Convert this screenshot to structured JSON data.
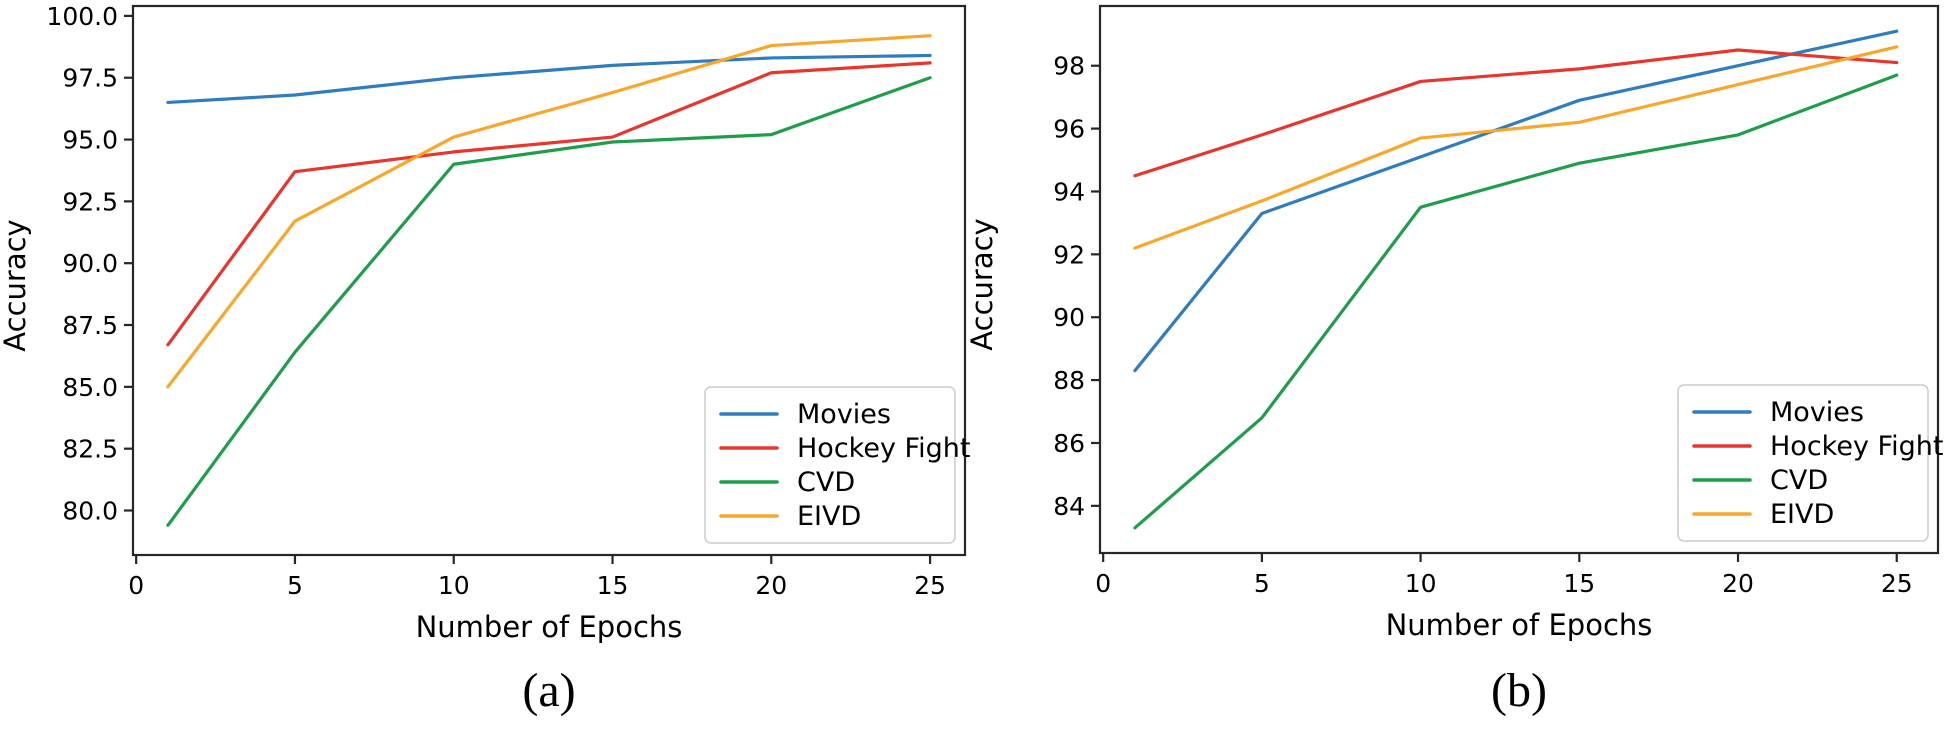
{
  "figure": {
    "ylabel": "Accuracy",
    "xlabel": "Number of Epochs"
  },
  "palette": {
    "movies": "#2f7cbe",
    "hockey_fight": "#e8352d",
    "cvd": "#1e9e4a",
    "eivd": "#f9a72b",
    "axis": "#262626",
    "legend_border": "#cccccc",
    "background": "#ffffff"
  },
  "chart_data": [
    {
      "id": "a",
      "type": "line",
      "caption": "(a)",
      "title": "",
      "xlabel": "Number of Epochs",
      "ylabel": "Accuracy",
      "x": [
        1,
        5,
        10,
        15,
        20,
        25
      ],
      "series": [
        {
          "name": "Movies",
          "color": "#2f7cbe",
          "values": [
            96.5,
            96.8,
            97.5,
            98.0,
            98.3,
            98.4
          ]
        },
        {
          "name": "Hockey Fight",
          "color": "#e8352d",
          "values": [
            86.7,
            93.7,
            94.5,
            95.1,
            97.7,
            98.1
          ]
        },
        {
          "name": "CVD",
          "color": "#1e9e4a",
          "values": [
            79.4,
            86.4,
            94.0,
            94.9,
            95.2,
            97.5
          ]
        },
        {
          "name": "EIVD",
          "color": "#f9a72b",
          "values": [
            85.0,
            91.7,
            95.1,
            96.9,
            98.8,
            99.2
          ]
        }
      ],
      "xlim": [
        -0.1,
        26.1
      ],
      "ylim": [
        78.2,
        100.4
      ],
      "xticks": [
        0,
        5,
        10,
        15,
        20,
        25
      ],
      "xtick_labels": [
        "0",
        "5",
        "10",
        "15",
        "20",
        "25"
      ],
      "yticks": [
        80.0,
        82.5,
        85.0,
        87.5,
        90.0,
        92.5,
        95.0,
        97.5,
        100.0
      ],
      "ytick_labels": [
        "80.0",
        "82.5",
        "85.0",
        "87.5",
        "90.0",
        "92.5",
        "95.0",
        "97.5",
        "100.0"
      ],
      "legend_position": "lower right",
      "legend_entries": [
        "Movies",
        "Hockey Fight",
        "CVD",
        "EIVD"
      ],
      "grid": false
    },
    {
      "id": "b",
      "type": "line",
      "caption": "(b)",
      "title": "",
      "xlabel": "Number of Epochs",
      "ylabel": "Accuracy",
      "x": [
        1,
        5,
        10,
        15,
        20,
        25
      ],
      "series": [
        {
          "name": "Movies",
          "color": "#2f7cbe",
          "values": [
            88.3,
            93.3,
            95.1,
            96.9,
            98.0,
            99.1
          ]
        },
        {
          "name": "Hockey Fight",
          "color": "#e8352d",
          "values": [
            94.5,
            95.8,
            97.5,
            97.9,
            98.5,
            98.1
          ]
        },
        {
          "name": "CVD",
          "color": "#1e9e4a",
          "values": [
            83.3,
            86.8,
            93.5,
            94.9,
            95.8,
            97.7
          ]
        },
        {
          "name": "EIVD",
          "color": "#f9a72b",
          "values": [
            92.2,
            93.7,
            95.7,
            96.2,
            97.4,
            98.6
          ]
        }
      ],
      "xlim": [
        -0.1,
        26.3
      ],
      "ylim": [
        82.5,
        99.9
      ],
      "xticks": [
        0,
        5,
        10,
        15,
        20,
        25
      ],
      "xtick_labels": [
        "0",
        "5",
        "10",
        "15",
        "20",
        "25"
      ],
      "yticks": [
        84,
        86,
        88,
        90,
        92,
        94,
        96,
        98
      ],
      "ytick_labels": [
        "84",
        "86",
        "88",
        "90",
        "92",
        "94",
        "96",
        "98"
      ],
      "legend_position": "lower right",
      "legend_entries": [
        "Movies",
        "Hockey Fight",
        "CVD",
        "EIVD"
      ],
      "grid": false
    }
  ]
}
